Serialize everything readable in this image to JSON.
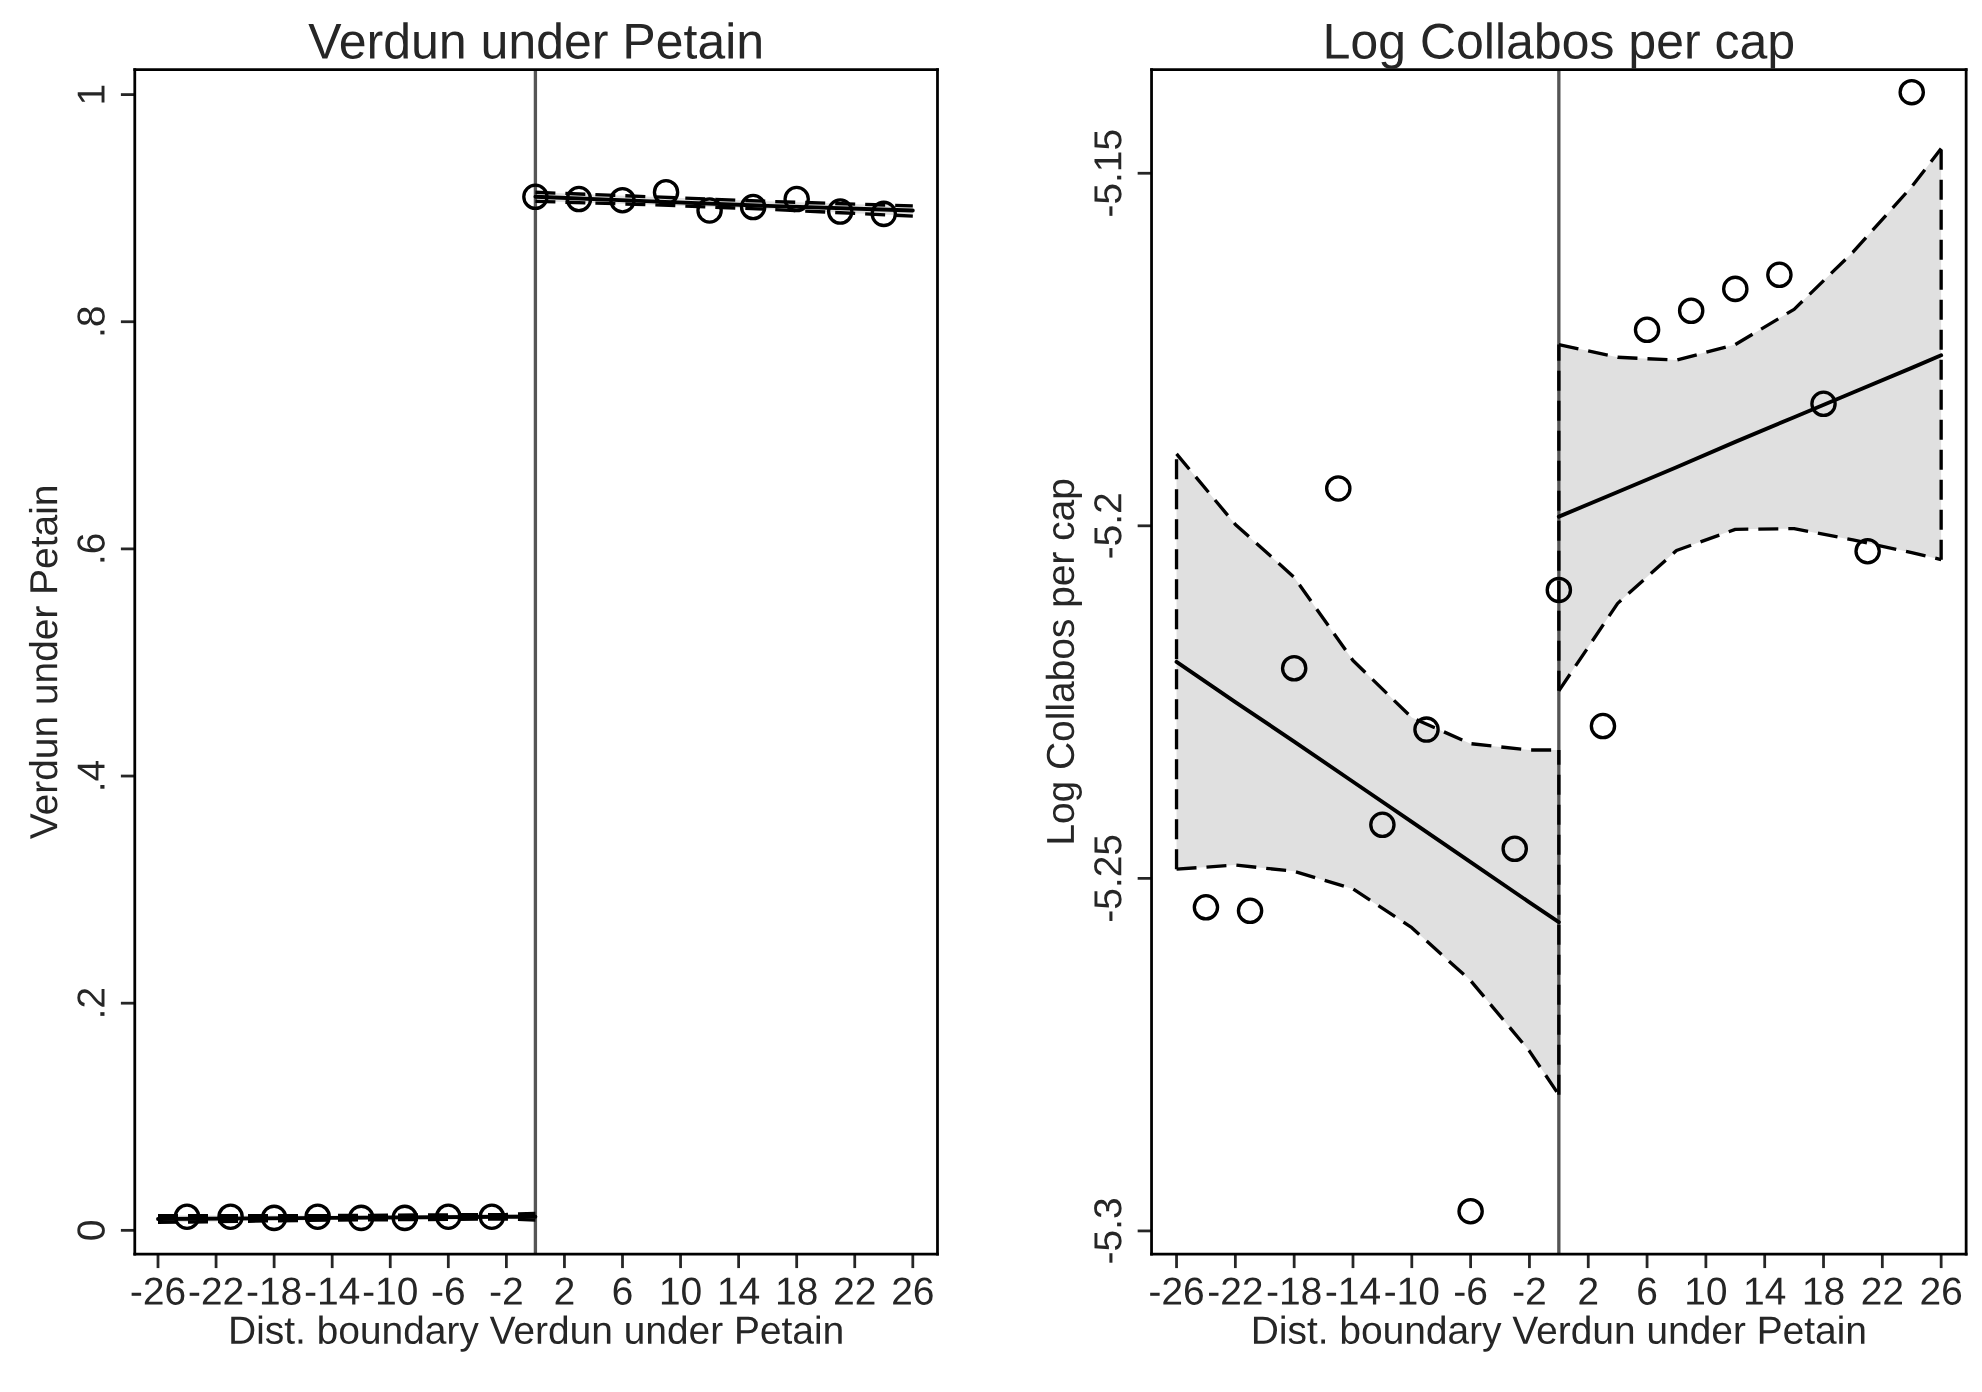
{
  "chart_data": [
    {
      "type": "scatter",
      "title": "Verdun under Petain",
      "xlabel": "Dist. boundary Verdun under Petain",
      "ylabel": "Verdun under Petain",
      "xlim": [
        -27.6,
        27.7
      ],
      "ylim": [
        -0.021,
        1.022
      ],
      "xticks": [
        -26,
        -22,
        -18,
        -14,
        -10,
        -6,
        -2,
        2,
        6,
        10,
        14,
        18,
        22,
        26
      ],
      "yticks": [
        {
          "value": 0,
          "label": "0"
        },
        {
          "value": 0.2,
          "label": ".2"
        },
        {
          "value": 0.4,
          "label": ".4"
        },
        {
          "value": 0.6,
          "label": ".6"
        },
        {
          "value": 0.8,
          "label": ".8"
        },
        {
          "value": 1,
          "label": "1"
        }
      ],
      "grid": false,
      "legend": false,
      "ref_lines": [
        {
          "axis": "x",
          "value": 0,
          "color": "#555555"
        }
      ],
      "series": [
        {
          "type": "line",
          "color": "#000000",
          "marker": "none",
          "line_style": "dashed",
          "x": [
            -26,
            -14,
            -2,
            0
          ],
          "values": [
            0.007,
            0.009,
            0.01,
            0.009
          ]
        },
        {
          "type": "line",
          "color": "#000000",
          "marker": "none",
          "line_style": "dashed",
          "x": [
            -26,
            -14,
            -2,
            0
          ],
          "values": [
            0.013,
            0.013,
            0.014,
            0.015
          ]
        },
        {
          "type": "line",
          "color": "#000000",
          "marker": "none",
          "line_style": "solid",
          "x": [
            -26,
            -14,
            -2,
            0
          ],
          "values": [
            0.01,
            0.011,
            0.012,
            0.012
          ],
          "lower": [
            0.007,
            0.009,
            0.01,
            0.009
          ],
          "upper": [
            0.013,
            0.013,
            0.014,
            0.015
          ]
        },
        {
          "type": "line",
          "color": "#000000",
          "marker": "none",
          "line_style": "dashed",
          "x": [
            0,
            8,
            16,
            26
          ],
          "values": [
            0.906,
            0.903,
            0.899,
            0.893
          ]
        },
        {
          "type": "line",
          "color": "#000000",
          "marker": "none",
          "line_style": "dashed",
          "x": [
            0,
            8,
            16,
            26
          ],
          "values": [
            0.914,
            0.91,
            0.906,
            0.902
          ]
        },
        {
          "type": "line",
          "color": "#000000",
          "marker": "none",
          "line_style": "solid",
          "x": [
            0,
            8,
            16,
            26
          ],
          "values": [
            0.91,
            0.906,
            0.902,
            0.898
          ],
          "lower": [
            0.906,
            0.903,
            0.899,
            0.893
          ],
          "upper": [
            0.914,
            0.91,
            0.906,
            0.902
          ]
        },
        {
          "color": "#000000",
          "marker": "circle",
          "x": [
            -24,
            -21,
            -18,
            -15,
            -12,
            -9,
            -6,
            -3,
            0,
            3,
            6,
            9,
            12,
            15,
            18,
            21,
            24
          ],
          "values": [
            0.012,
            0.012,
            0.011,
            0.012,
            0.011,
            0.011,
            0.012,
            0.012,
            0.91,
            0.908,
            0.907,
            0.914,
            0.898,
            0.901,
            0.908,
            0.897,
            0.895
          ]
        }
      ]
    },
    {
      "type": "scatter",
      "title": "Log Collabos per cap",
      "xlabel": "Dist. boundary Verdun under Petain",
      "ylabel": "Log Collabos per cap",
      "xlim": [
        -27.7,
        27.7
      ],
      "ylim": [
        -5.3033,
        -5.1353
      ],
      "xticks": [
        -26,
        -22,
        -18,
        -14,
        -10,
        -6,
        -2,
        2,
        6,
        10,
        14,
        18,
        22,
        26
      ],
      "yticks": [
        -5.3,
        -5.25,
        -5.2,
        -5.15
      ],
      "grid": false,
      "legend": false,
      "ref_lines": [
        {
          "axis": "x",
          "value": 0,
          "color": "#555555"
        }
      ],
      "series": [
        {
          "type": "line",
          "color": "#000000",
          "marker": "none",
          "line_style": "solid",
          "x": [
            -26,
            -22,
            -18,
            -14,
            -10,
            -6,
            -2,
            0
          ],
          "values": [
            -5.2193,
            -5.225,
            -5.2306,
            -5.2363,
            -5.242,
            -5.2477,
            -5.2534,
            -5.2562
          ],
          "lower": [
            -5.2487,
            -5.2481,
            -5.249,
            -5.2515,
            -5.257,
            -5.2645,
            -5.2745,
            -5.2807
          ],
          "upper": [
            -5.1898,
            -5.1998,
            -5.2073,
            -5.2191,
            -5.2272,
            -5.2309,
            -5.2318,
            -5.2318
          ]
        },
        {
          "type": "line",
          "color": "#000000",
          "marker": "none",
          "line_style": "dashed",
          "x": [
            -26,
            -22,
            -18,
            -14,
            -10,
            -6,
            -2,
            0
          ],
          "values": [
            -5.2487,
            -5.2481,
            -5.249,
            -5.2515,
            -5.257,
            -5.2645,
            -5.2745,
            -5.2807
          ]
        },
        {
          "type": "line",
          "color": "#000000",
          "marker": "none",
          "line_style": "dashed",
          "x": [
            -26,
            -22,
            -18,
            -14,
            -10,
            -6,
            -2,
            0
          ],
          "values": [
            -5.1898,
            -5.1998,
            -5.2073,
            -5.2191,
            -5.2272,
            -5.2309,
            -5.2318,
            -5.2318
          ]
        },
        {
          "type": "line",
          "color": "#000000",
          "marker": "none",
          "line_style": "dashed",
          "x": [
            -26,
            -26
          ],
          "values": [
            -5.2487,
            -5.1898
          ]
        },
        {
          "type": "line",
          "color": "#000000",
          "marker": "none",
          "line_style": "dashed",
          "x": [
            0,
            0
          ],
          "values": [
            -5.2807,
            -5.2318
          ]
        },
        {
          "type": "line",
          "color": "#000000",
          "marker": "none",
          "line_style": "solid",
          "x": [
            0,
            4,
            8,
            12,
            16,
            20,
            24,
            26
          ],
          "values": [
            -5.1987,
            -5.1952,
            -5.1917,
            -5.1881,
            -5.1846,
            -5.1811,
            -5.1776,
            -5.1758
          ],
          "lower": [
            -5.2234,
            -5.211,
            -5.2035,
            -5.2005,
            -5.2004,
            -5.202,
            -5.2038,
            -5.2048
          ],
          "upper": [
            -5.1743,
            -5.1761,
            -5.1765,
            -5.1743,
            -5.1693,
            -5.1612,
            -5.1519,
            -5.1465
          ]
        },
        {
          "type": "line",
          "color": "#000000",
          "marker": "none",
          "line_style": "dashed",
          "x": [
            0,
            4,
            8,
            12,
            16,
            20,
            24,
            26
          ],
          "values": [
            -5.2234,
            -5.211,
            -5.2035,
            -5.2005,
            -5.2004,
            -5.202,
            -5.2038,
            -5.2048
          ]
        },
        {
          "type": "line",
          "color": "#000000",
          "marker": "none",
          "line_style": "dashed",
          "x": [
            0,
            4,
            8,
            12,
            16,
            20,
            24,
            26
          ],
          "values": [
            -5.1743,
            -5.1761,
            -5.1765,
            -5.1743,
            -5.1693,
            -5.1612,
            -5.1519,
            -5.1465
          ]
        },
        {
          "type": "line",
          "color": "#000000",
          "marker": "none",
          "line_style": "dashed",
          "x": [
            0,
            0
          ],
          "values": [
            -5.2234,
            -5.1743
          ]
        },
        {
          "type": "line",
          "color": "#000000",
          "marker": "none",
          "line_style": "dashed",
          "x": [
            26,
            26
          ],
          "values": [
            -5.2048,
            -5.1465
          ]
        },
        {
          "color": "#000000",
          "marker": "circle",
          "x": [
            -24,
            -21,
            -18,
            -15,
            -12,
            -9,
            -6,
            -3,
            0,
            3,
            6,
            9,
            12,
            15,
            18,
            21,
            24
          ],
          "values": [
            -5.2541,
            -5.2546,
            -5.2202,
            -5.1947,
            -5.2424,
            -5.2289,
            -5.2972,
            -5.2458,
            -5.2091,
            -5.2284,
            -5.1722,
            -5.1695,
            -5.1664,
            -5.1644,
            -5.1827,
            -5.2036,
            -5.1385
          ]
        }
      ]
    }
  ]
}
